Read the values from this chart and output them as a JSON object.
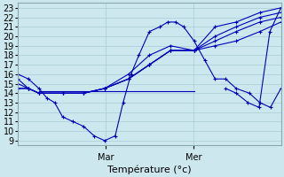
{
  "background_color": "#cce8ee",
  "grid_color": "#aaccd4",
  "line_color": "#0000bb",
  "ylabel": "Température (°c)",
  "ylim": [
    8.5,
    23.5
  ],
  "yticks": [
    9,
    10,
    11,
    12,
    13,
    14,
    15,
    16,
    17,
    18,
    19,
    20,
    21,
    22,
    23
  ],
  "xtick_positions": [
    0.333,
    0.667
  ],
  "xtick_labels": [
    "Mar",
    "Mer"
  ],
  "xlim": [
    0.0,
    1.0
  ],
  "series": [
    {
      "x": [
        0.0,
        0.04,
        0.08,
        0.11,
        0.14,
        0.17,
        0.21,
        0.25,
        0.29,
        0.33,
        0.37,
        0.4,
        0.43,
        0.46,
        0.5,
        0.54,
        0.57,
        0.6,
        0.63,
        0.67,
        0.71,
        0.75,
        0.79,
        0.83,
        0.88,
        0.92,
        0.96,
        1.0
      ],
      "y": [
        16.0,
        15.5,
        14.5,
        13.5,
        13.0,
        11.5,
        11.0,
        10.5,
        9.5,
        9.0,
        9.5,
        13.0,
        16.0,
        18.0,
        20.5,
        21.0,
        21.5,
        21.5,
        21.0,
        19.5,
        17.5,
        15.5,
        15.5,
        14.5,
        14.0,
        13.0,
        12.5,
        14.5
      ]
    },
    {
      "x": [
        0.0,
        0.04,
        0.08,
        0.17,
        0.25,
        0.33,
        0.42,
        0.5,
        0.58,
        0.67,
        0.75,
        0.83,
        0.92,
        1.0
      ],
      "y": [
        15.0,
        14.5,
        14.0,
        14.0,
        14.0,
        14.5,
        15.5,
        17.0,
        18.5,
        18.5,
        19.0,
        19.5,
        20.5,
        21.5
      ]
    },
    {
      "x": [
        0.0,
        0.04,
        0.08,
        0.17,
        0.25,
        0.33,
        0.42,
        0.5,
        0.58,
        0.67,
        0.75,
        0.83,
        0.92,
        1.0
      ],
      "y": [
        14.5,
        14.5,
        14.0,
        14.0,
        14.0,
        14.5,
        15.5,
        17.0,
        18.5,
        18.5,
        19.5,
        20.5,
        21.5,
        22.0
      ]
    },
    {
      "x": [
        0.0,
        0.04,
        0.08,
        0.17,
        0.25,
        0.33,
        0.42,
        0.5,
        0.58,
        0.67,
        0.75,
        0.83,
        0.92,
        1.0
      ],
      "y": [
        14.5,
        14.5,
        14.0,
        14.0,
        14.0,
        14.5,
        15.5,
        17.0,
        18.5,
        18.5,
        20.0,
        21.0,
        22.0,
        22.5
      ]
    },
    {
      "x": [
        0.0,
        0.04,
        0.08,
        0.17,
        0.25,
        0.33,
        0.42,
        0.5,
        0.58,
        0.67,
        0.75,
        0.83,
        0.92,
        1.0
      ],
      "y": [
        15.5,
        14.5,
        14.0,
        14.0,
        14.0,
        14.5,
        16.0,
        18.0,
        19.0,
        18.5,
        21.0,
        21.5,
        22.5,
        23.0
      ]
    },
    {
      "x": [
        0.08,
        0.67
      ],
      "y": [
        14.2,
        14.2
      ]
    }
  ],
  "main_series_extra": {
    "x": [
      0.79,
      0.83,
      0.88,
      0.92,
      0.96,
      1.0
    ],
    "y": [
      14.5,
      14.0,
      13.0,
      12.5,
      20.5,
      23.0
    ]
  },
  "fontsize_label": 8,
  "fontsize_tick": 7
}
